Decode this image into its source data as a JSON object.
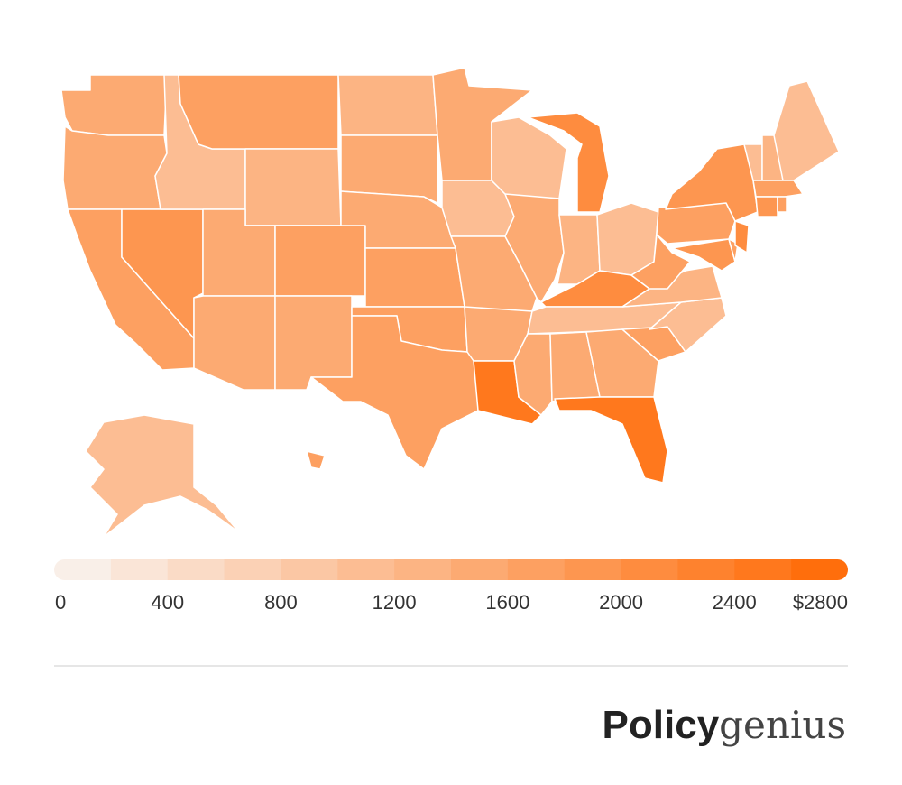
{
  "chart_data": {
    "type": "choropleth",
    "values": [
      1500,
      1400,
      1700,
      1900,
      1000,
      1700,
      1300,
      1400,
      1400,
      1600,
      1400,
      1200,
      1500,
      1500,
      1600,
      1700,
      1700,
      1400,
      1000,
      1400,
      1500,
      2500,
      1000,
      1400,
      2000,
      1300,
      1000,
      2000,
      1100,
      1500,
      1500,
      1500,
      2500,
      1700,
      1000,
      1200,
      1700,
      1600,
      1900,
      1800,
      1600,
      2000,
      1100,
      1200,
      1100,
      1700,
      1800,
      1700,
      1100,
      1600
    ],
    "scale": {
      "lim": [
        0,
        2800
      ],
      "step": 200,
      "colors": [
        "#f9f9f9",
        "#ff6e0c"
      ],
      "ticks": [
        0,
        400,
        800,
        1200,
        1600,
        2000,
        2400,
        {
          "value": 2800,
          "label": "$2800"
        }
      ]
    }
  },
  "footer": {
    "logo_bold": "Policy",
    "logo_light": "genius"
  }
}
